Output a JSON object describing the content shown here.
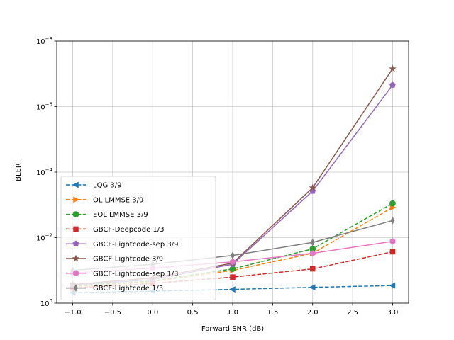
{
  "chart_data": {
    "type": "line",
    "xlabel": "Forward SNR (dB)",
    "ylabel": "BLER",
    "xlim": [
      -1.2,
      3.2
    ],
    "ylim_log10": [
      -8,
      0
    ],
    "y_scale": "log",
    "grid": true,
    "legend_placement": "lower-left",
    "x_ticks": [
      -1.0,
      -0.5,
      0.0,
      0.5,
      1.0,
      1.5,
      2.0,
      2.5,
      3.0
    ],
    "x_tick_labels": [
      "−1.0",
      "−0.5",
      "0.0",
      "0.5",
      "1.0",
      "1.5",
      "2.0",
      "2.5",
      "3.0"
    ],
    "y_ticks_exp": [
      0,
      -2,
      -4,
      -6,
      -8
    ],
    "y_tick_exponent_labels": [
      "0",
      "−2",
      "−4",
      "−6",
      "−8"
    ],
    "y_tick_base": "10",
    "x": [
      -1,
      0,
      1,
      2,
      3
    ],
    "series": [
      {
        "name": "LQG 3/9",
        "color": "#1f77b4",
        "dash": "dashed",
        "marker": "triangle-left",
        "values": [
          0.48,
          0.43,
          0.38,
          0.33,
          0.29
        ]
      },
      {
        "name": "OL LMMSE 3/9",
        "color": "#ff7f0e",
        "dash": "dashed",
        "marker": "triangle-right",
        "values": [
          0.32,
          0.22,
          0.1,
          0.03,
          0.0012
        ]
      },
      {
        "name": "EOL LMMSE 3/9",
        "color": "#2ca02c",
        "dash": "dashed",
        "marker": "circle",
        "values": [
          0.3,
          0.21,
          0.09,
          0.022,
          0.0009
        ]
      },
      {
        "name": "GBCF-Deepcode 1/3",
        "color": "#d62728",
        "dash": "dashed",
        "marker": "square",
        "values": [
          0.35,
          0.25,
          0.16,
          0.09,
          0.027
        ]
      },
      {
        "name": "GBCF-Lightcode-sep 3/9",
        "color": "#9467bd",
        "dash": "solid",
        "marker": "pentagon",
        "values": [
          0.28,
          0.19,
          0.065,
          0.00038,
          2.2e-07
        ]
      },
      {
        "name": "GBCF-Lightcode 3/9",
        "color": "#8c564b",
        "dash": "solid",
        "marker": "star",
        "values": [
          0.27,
          0.17,
          0.06,
          0.0003,
          7e-08
        ]
      },
      {
        "name": "GBCF-Lightcode-sep 1/3",
        "color": "#e377c2",
        "dash": "solid",
        "marker": "hexagon",
        "values": [
          0.12,
          0.085,
          0.055,
          0.03,
          0.013
        ]
      },
      {
        "name": "GBCF-Lightcode 1/3",
        "color": "#7f7f7f",
        "dash": "solid",
        "marker": "thin-diamond",
        "values": [
          0.1,
          0.065,
          0.035,
          0.014,
          0.003
        ]
      }
    ]
  }
}
